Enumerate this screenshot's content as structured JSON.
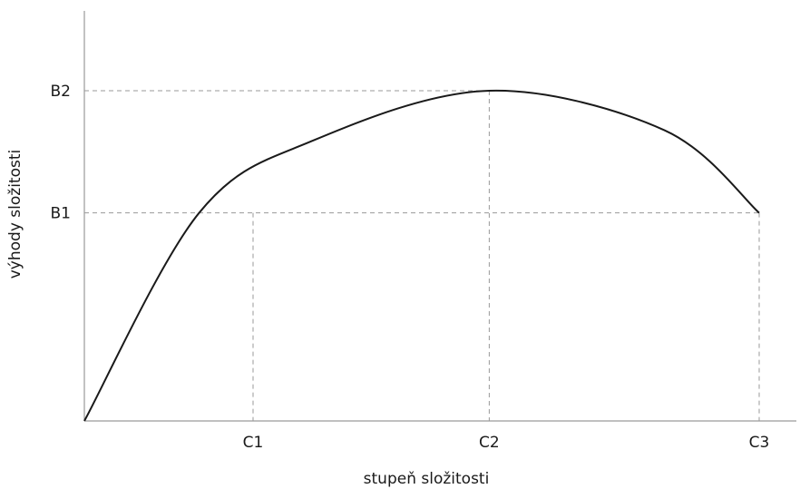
{
  "chart_data": {
    "type": "line",
    "title": "",
    "xlabel": "stupeň složitosti",
    "ylabel": "výhody složitosti",
    "x_ticks": [
      {
        "label": "C1",
        "value": 0.25
      },
      {
        "label": "C2",
        "value": 0.6
      },
      {
        "label": "C3",
        "value": 1.0
      }
    ],
    "y_ticks": [
      {
        "label": "B1",
        "value": 0.63
      },
      {
        "label": "B2",
        "value": 1.0
      }
    ],
    "xlim": [
      0,
      1.05
    ],
    "ylim": [
      0,
      1.2
    ],
    "grid": false,
    "series": [
      {
        "color": "#1a1a1a",
        "points": [
          {
            "x": 0.0,
            "y": 0.0
          },
          {
            "x": 0.17,
            "y": 0.63
          },
          {
            "x": 0.34,
            "y": 0.85
          },
          {
            "x": 0.6,
            "y": 1.0
          },
          {
            "x": 0.86,
            "y": 0.88
          },
          {
            "x": 1.0,
            "y": 0.63
          }
        ]
      }
    ],
    "colors": {
      "axis": "#9a9a9a",
      "guides": "#9a9a9a",
      "curve": "#1a1a1a"
    }
  }
}
